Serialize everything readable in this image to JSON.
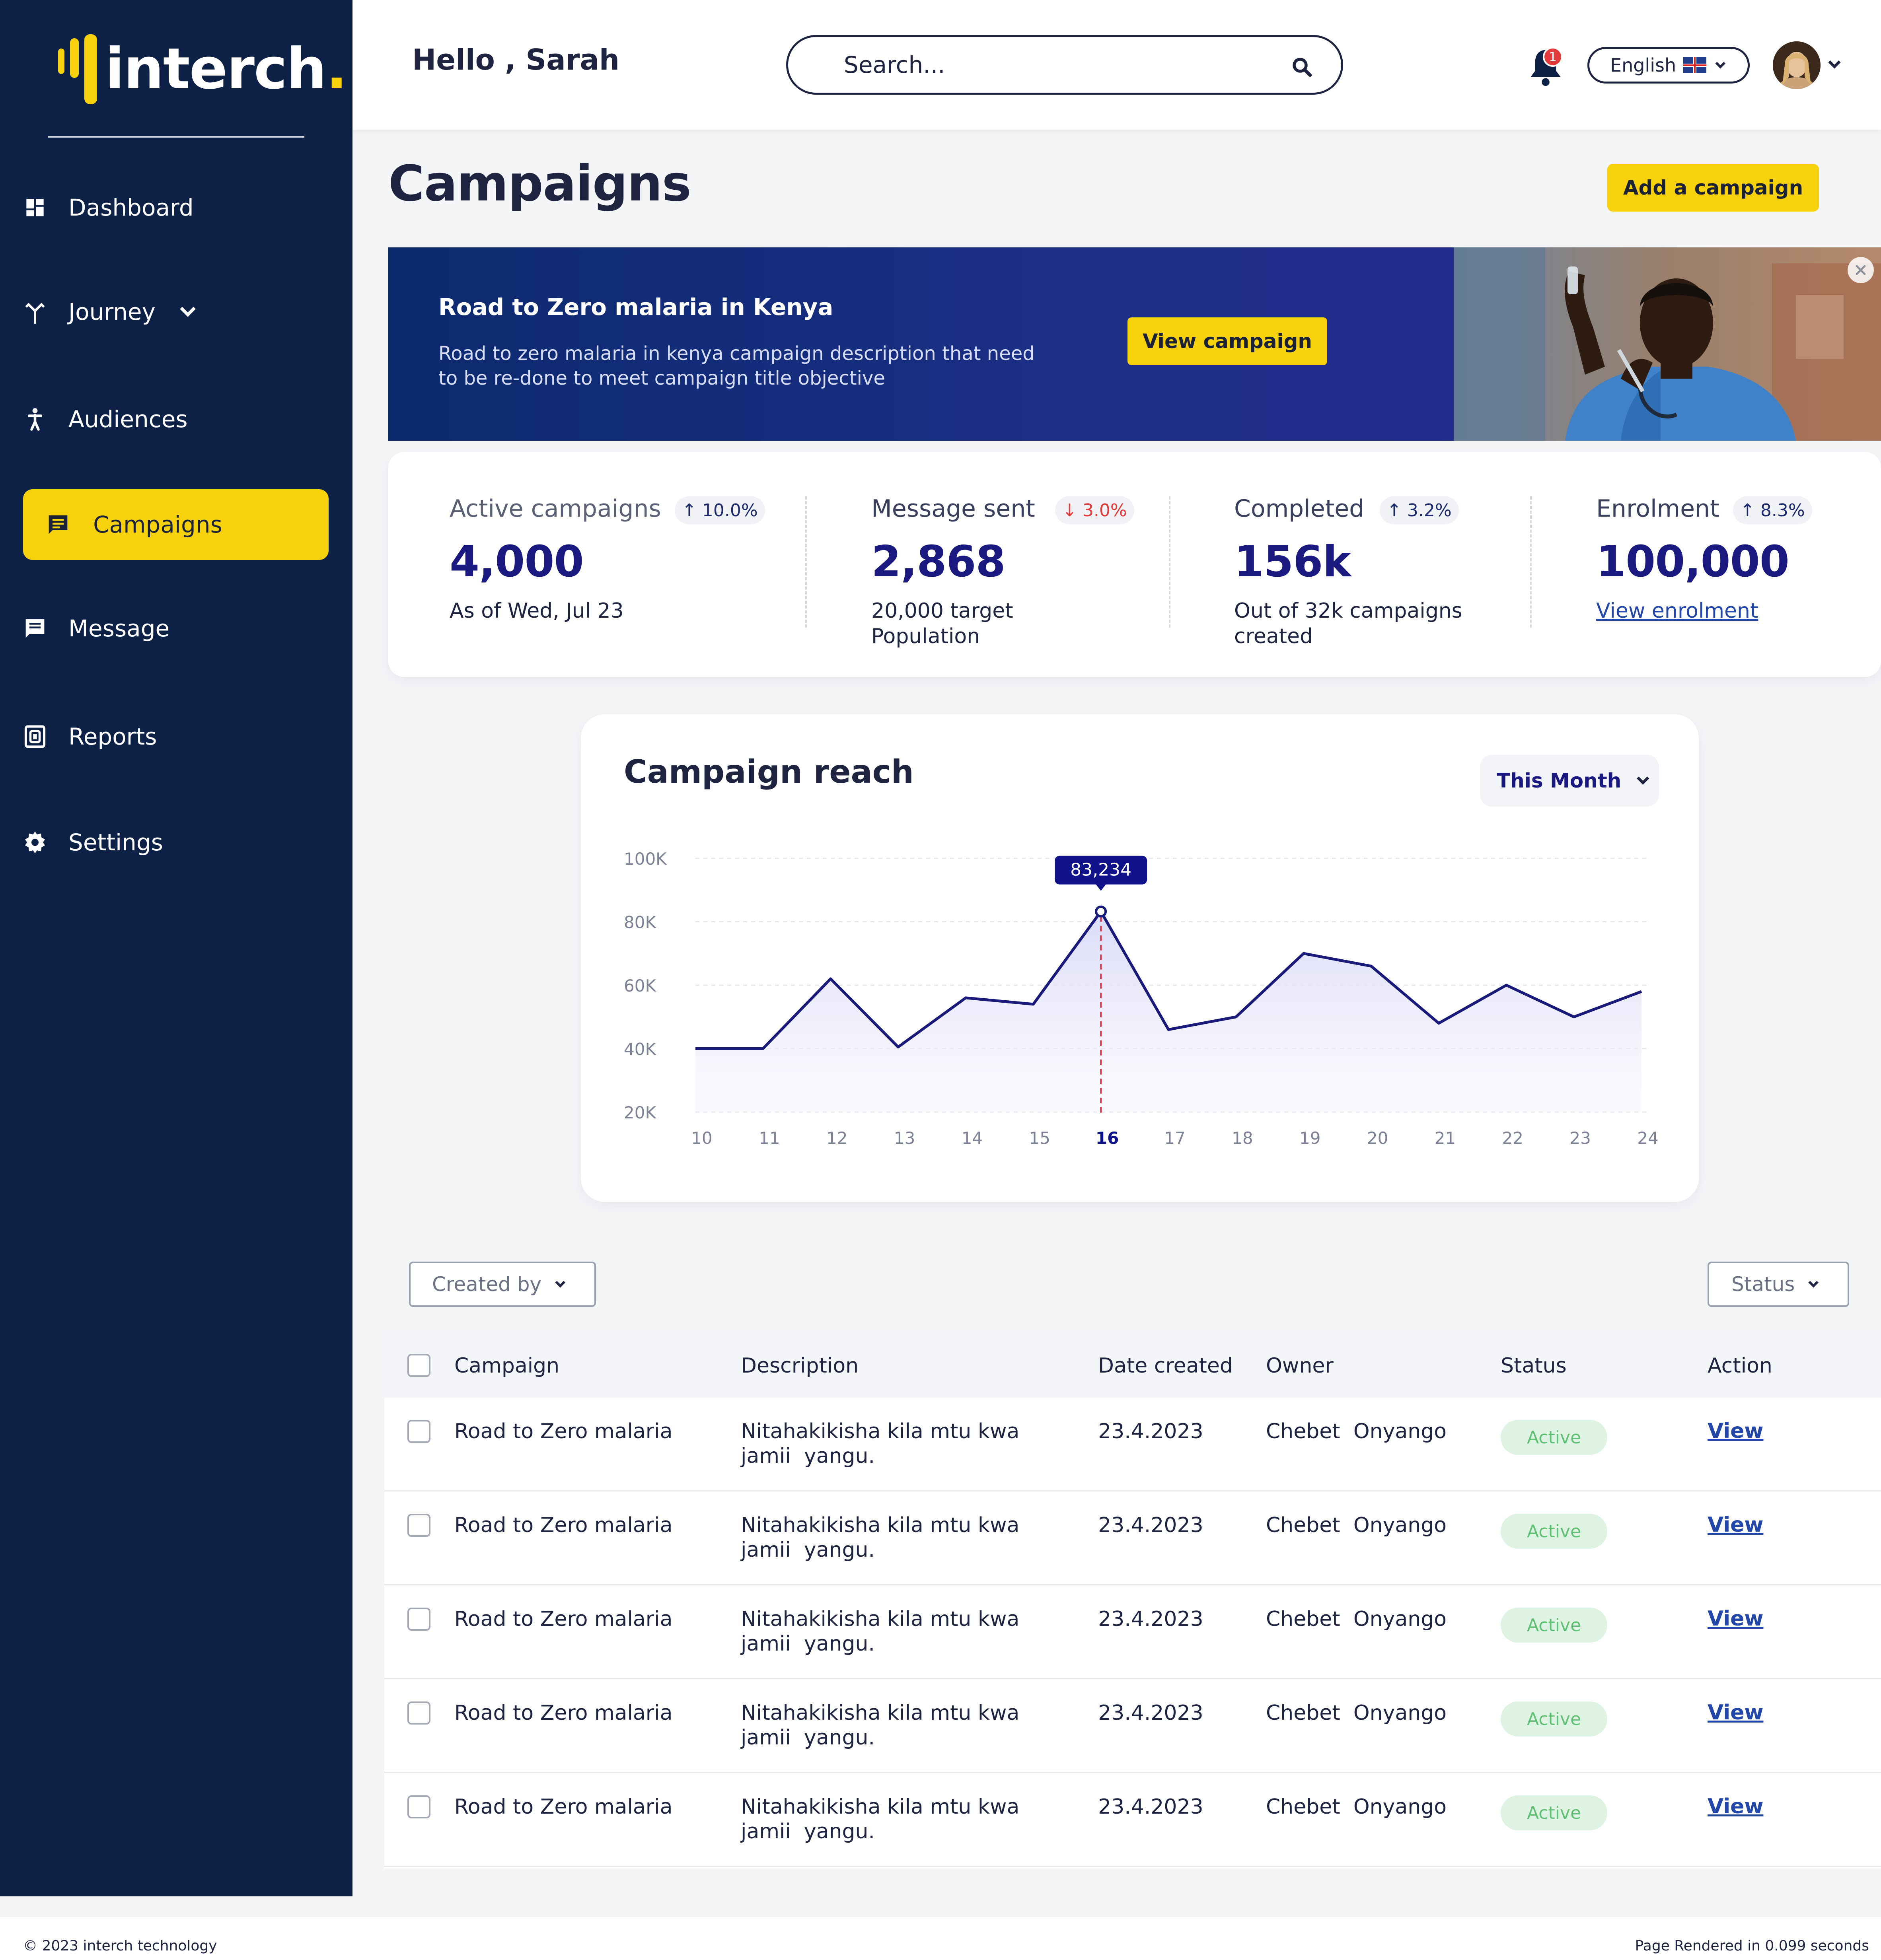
{
  "brand": {
    "name_main": "interch",
    "name_dot": "."
  },
  "sidebar": {
    "items": [
      {
        "label": "Dashboard",
        "icon": "dashboard-icon"
      },
      {
        "label": "Journey",
        "icon": "journey-icon"
      },
      {
        "label": "Audiences",
        "icon": "audiences-icon"
      },
      {
        "label": "Campaigns",
        "icon": "campaigns-icon"
      },
      {
        "label": "Message",
        "icon": "message-icon"
      },
      {
        "label": "Reports",
        "icon": "reports-icon"
      },
      {
        "label": "Settings",
        "icon": "settings-icon"
      }
    ]
  },
  "header": {
    "greeting": "Hello , Sarah",
    "search_placeholder": "Search...",
    "notification_count": "1",
    "language": "English"
  },
  "page": {
    "title": "Campaigns",
    "add_button": "Add a campaign"
  },
  "banner": {
    "title": "Road to Zero malaria in Kenya",
    "description": "Road to zero malaria in kenya campaign description that need to be re-done to meet campaign title objective",
    "button": "View campaign"
  },
  "stats": [
    {
      "label": "Active campaigns",
      "change": "10.0%",
      "direction": "up",
      "value": "4,000",
      "sub": "As of Wed, Jul 23"
    },
    {
      "label": "Message sent",
      "change": "3.0%",
      "direction": "down",
      "value": "2,868",
      "sub": "20,000 target Population"
    },
    {
      "label": "Completed",
      "change": "3.2%",
      "direction": "up",
      "value": "156k",
      "sub": "Out of 32k campaigns created"
    },
    {
      "label": "Enrolment",
      "change": "8.3%",
      "direction": "up",
      "value": "100,000",
      "sub": "View enrolment"
    }
  ],
  "chart_card": {
    "title": "Campaign reach",
    "period": "This Month"
  },
  "chart_data": {
    "type": "area",
    "x": [
      "10",
      "11",
      "12",
      "13",
      "14",
      "15",
      "16",
      "17",
      "18",
      "19",
      "20",
      "21",
      "22",
      "23",
      "24"
    ],
    "values": [
      40000,
      40000,
      62000,
      40500,
      56000,
      54000,
      83234,
      46000,
      50000,
      70000,
      66000,
      48000,
      60000,
      50000,
      58000
    ],
    "ylim": [
      20000,
      100000
    ],
    "yticks": [
      "100K",
      "80K",
      "60K",
      "40K",
      "20K"
    ],
    "ytick_values": [
      100000,
      80000,
      60000,
      40000,
      20000
    ],
    "highlight_index": 6,
    "highlight_label": "83,234",
    "grid": true,
    "line_color": "#1a1a7a",
    "fill_color": "#e9e9fb"
  },
  "filters": {
    "created_by": "Created by",
    "status": "Status"
  },
  "table": {
    "headers": [
      "Campaign",
      "Description",
      "Date created",
      "Owner",
      "Status",
      "Action"
    ],
    "rows": [
      {
        "campaign": "Road to Zero malaria",
        "desc1": "Nitahakikisha kila mtu kwa",
        "desc2": "jamii  yangu.",
        "date": "23.4.2023",
        "owner": "Chebet  Onyango",
        "status": "Active",
        "action": "View"
      },
      {
        "campaign": "Road to Zero malaria",
        "desc1": "Nitahakikisha kila mtu kwa",
        "desc2": "jamii  yangu.",
        "date": "23.4.2023",
        "owner": "Chebet  Onyango",
        "status": "Active",
        "action": "View"
      },
      {
        "campaign": "Road to Zero malaria",
        "desc1": "Nitahakikisha kila mtu kwa",
        "desc2": "jamii  yangu.",
        "date": "23.4.2023",
        "owner": "Chebet  Onyango",
        "status": "Active",
        "action": "View"
      },
      {
        "campaign": "Road to Zero malaria",
        "desc1": "Nitahakikisha kila mtu kwa",
        "desc2": "jamii  yangu.",
        "date": "23.4.2023",
        "owner": "Chebet  Onyango",
        "status": "Active",
        "action": "View"
      },
      {
        "campaign": "Road to Zero malaria",
        "desc1": "Nitahakikisha kila mtu kwa",
        "desc2": "jamii  yangu.",
        "date": "23.4.2023",
        "owner": "Chebet  Onyango",
        "status": "Active",
        "action": "View"
      }
    ]
  },
  "footer": {
    "copyright": "© 2023 interch technology",
    "rendered": "Page Rendered in 0.099 seconds"
  },
  "colors": {
    "sidebar": "#0d2146",
    "accent": "#f7d10c",
    "value_text": "#1a1980",
    "active_badge_bg": "#dff3e2",
    "active_badge_text": "#5fbf74"
  }
}
